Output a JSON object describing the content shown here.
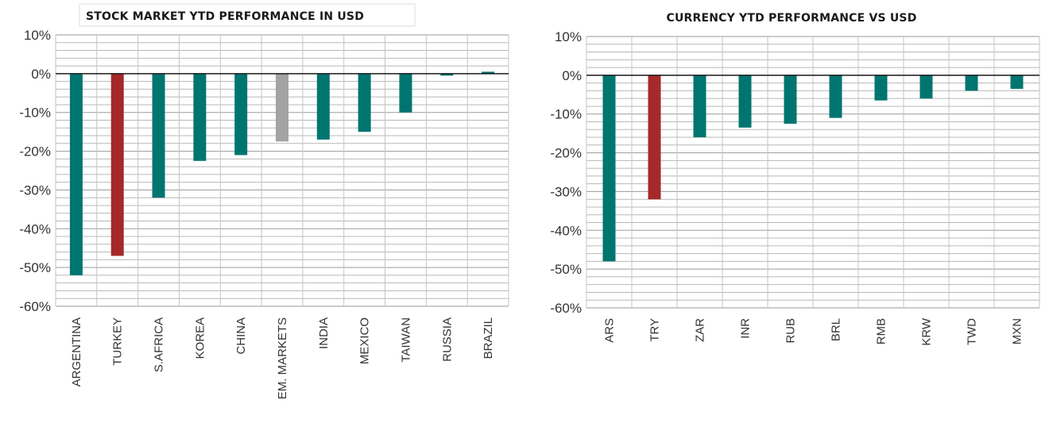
{
  "chart_data": [
    {
      "type": "bar",
      "title": "STOCK MARKET YTD PERFORMANCE IN USD",
      "xlabel": "",
      "ylabel": "",
      "ylim": [
        -60,
        10
      ],
      "yticks": [
        10,
        0,
        -10,
        -20,
        -30,
        -40,
        -50,
        -60
      ],
      "ytick_labels": [
        "10%",
        "0%",
        "-10%",
        "-20%",
        "-30%",
        "-40%",
        "-50%",
        "-60%"
      ],
      "categories": [
        "ARGENTINA",
        "TURKEY",
        "S.AFRICA",
        "KOREA",
        "CHINA",
        "EM. MARKETS",
        "INDIA",
        "MEXICO",
        "TAIWAN",
        "RUSSIA",
        "BRAZIL"
      ],
      "values": [
        -52,
        -47,
        -32,
        -22.5,
        -21,
        -17.5,
        -17,
        -15,
        -10,
        -0.5,
        0.5
      ],
      "bar_colors": [
        "#007570",
        "#a5292a",
        "#007570",
        "#007570",
        "#007570",
        "#a3a3a3",
        "#007570",
        "#007570",
        "#007570",
        "#007570",
        "#007570"
      ],
      "grid": true
    },
    {
      "type": "bar",
      "title": "CURRENCY YTD PERFORMANCE VS USD",
      "xlabel": "",
      "ylabel": "",
      "ylim": [
        -60,
        10
      ],
      "yticks": [
        10,
        0,
        -10,
        -20,
        -30,
        -40,
        -50,
        -60
      ],
      "ytick_labels": [
        "10%",
        "0%",
        "-10%",
        "-20%",
        "-30%",
        "-40%",
        "-50%",
        "-60%"
      ],
      "categories": [
        "ARS",
        "TRY",
        "ZAR",
        "INR",
        "RUB",
        "BRL",
        "RMB",
        "KRW",
        "TWD",
        "MXN"
      ],
      "values": [
        -48,
        -32,
        -16,
        -13.5,
        -12.5,
        -11,
        -6.5,
        -6,
        -4,
        -3.5
      ],
      "bar_colors": [
        "#007570",
        "#a5292a",
        "#007570",
        "#007570",
        "#007570",
        "#007570",
        "#007570",
        "#007570",
        "#007570",
        "#007570"
      ],
      "grid": true
    }
  ]
}
